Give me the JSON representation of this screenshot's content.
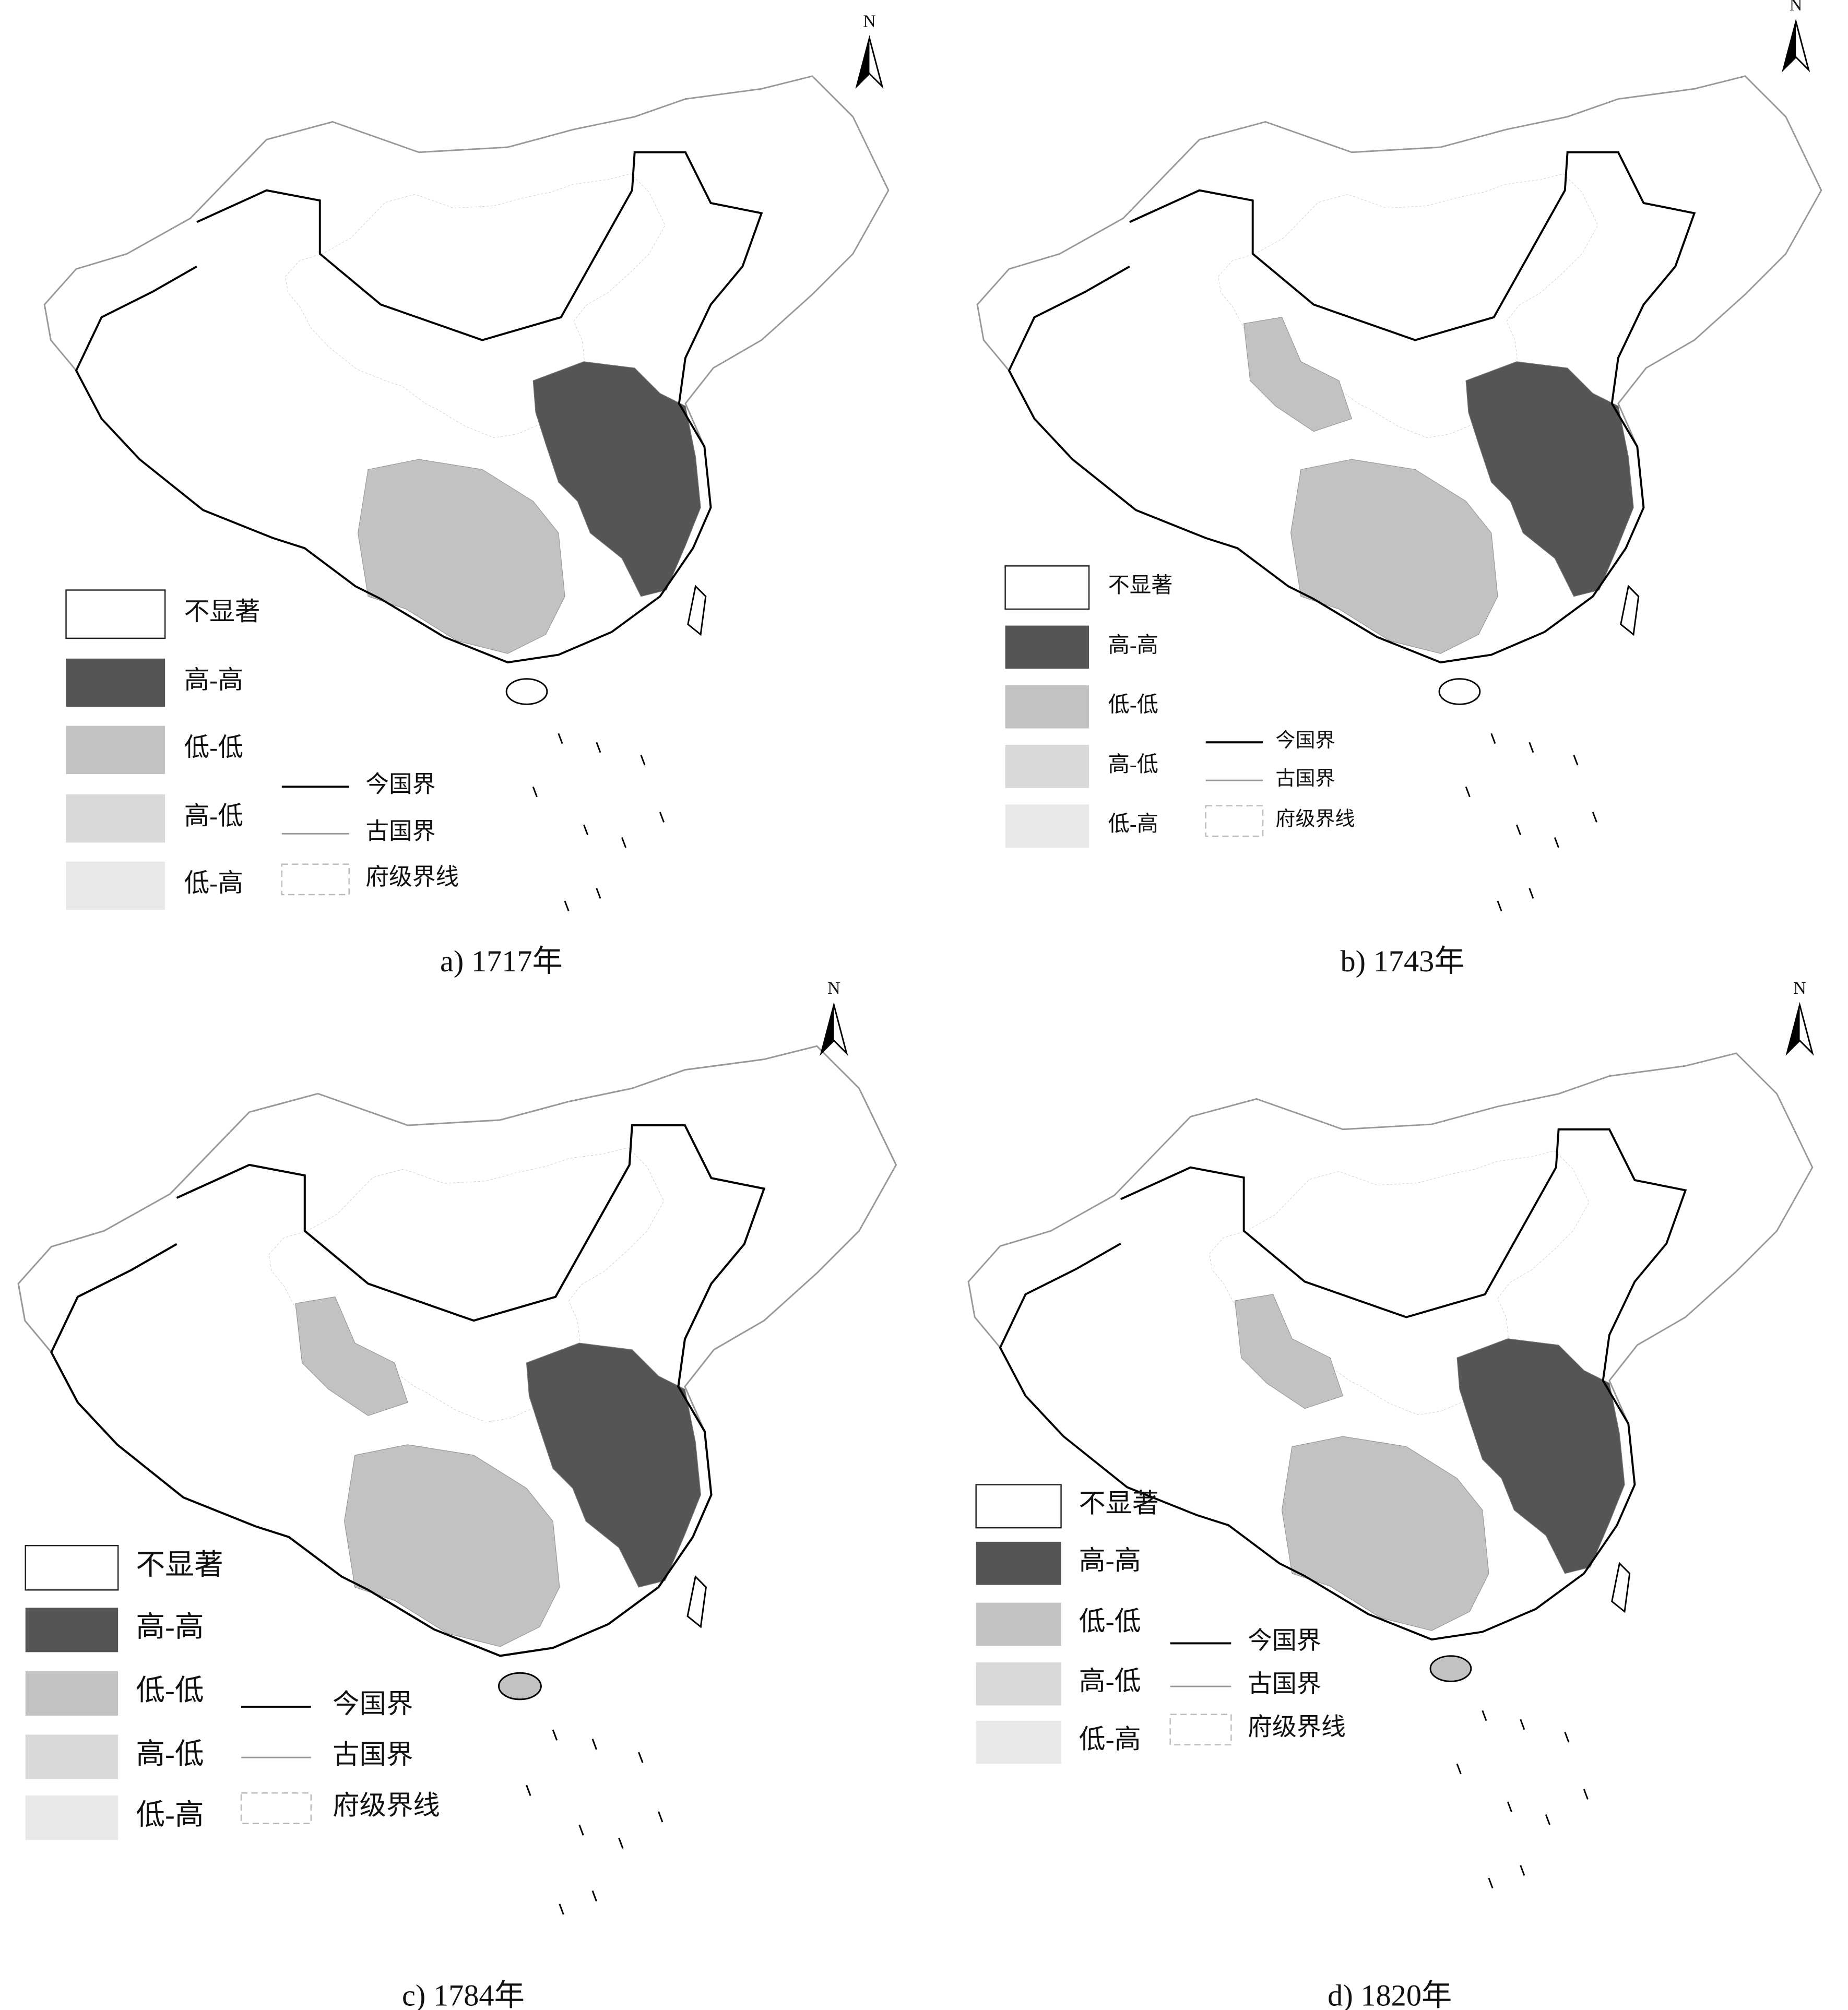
{
  "panels": [
    {
      "caption": "a) 1717年",
      "north": "N",
      "legend": {
        "classes": [
          "不显著",
          "高-高",
          "低-低",
          "高-低",
          "低-高"
        ],
        "lines": [
          "今国界",
          "古国界",
          "府级界线"
        ]
      }
    },
    {
      "caption": "b) 1743年",
      "north": "N",
      "legend": {
        "classes": [
          "不显著",
          "高-高",
          "低-低",
          "高-低",
          "低-高"
        ],
        "lines": [
          "今国界",
          "古国界",
          "府级界线"
        ]
      }
    },
    {
      "caption": "c) 1784年",
      "north": "N",
      "legend": {
        "classes": [
          "不显著",
          "高-高",
          "低-低",
          "高-低",
          "低-高"
        ],
        "lines": [
          "今国界",
          "古国界",
          "府级界线"
        ]
      }
    },
    {
      "caption": "d) 1820年",
      "north": "N",
      "legend": {
        "classes": [
          "不显著",
          "高-高",
          "低-低",
          "高-低",
          "低-高"
        ],
        "lines": [
          "今国界",
          "古国界",
          "府级界线"
        ]
      }
    }
  ]
}
